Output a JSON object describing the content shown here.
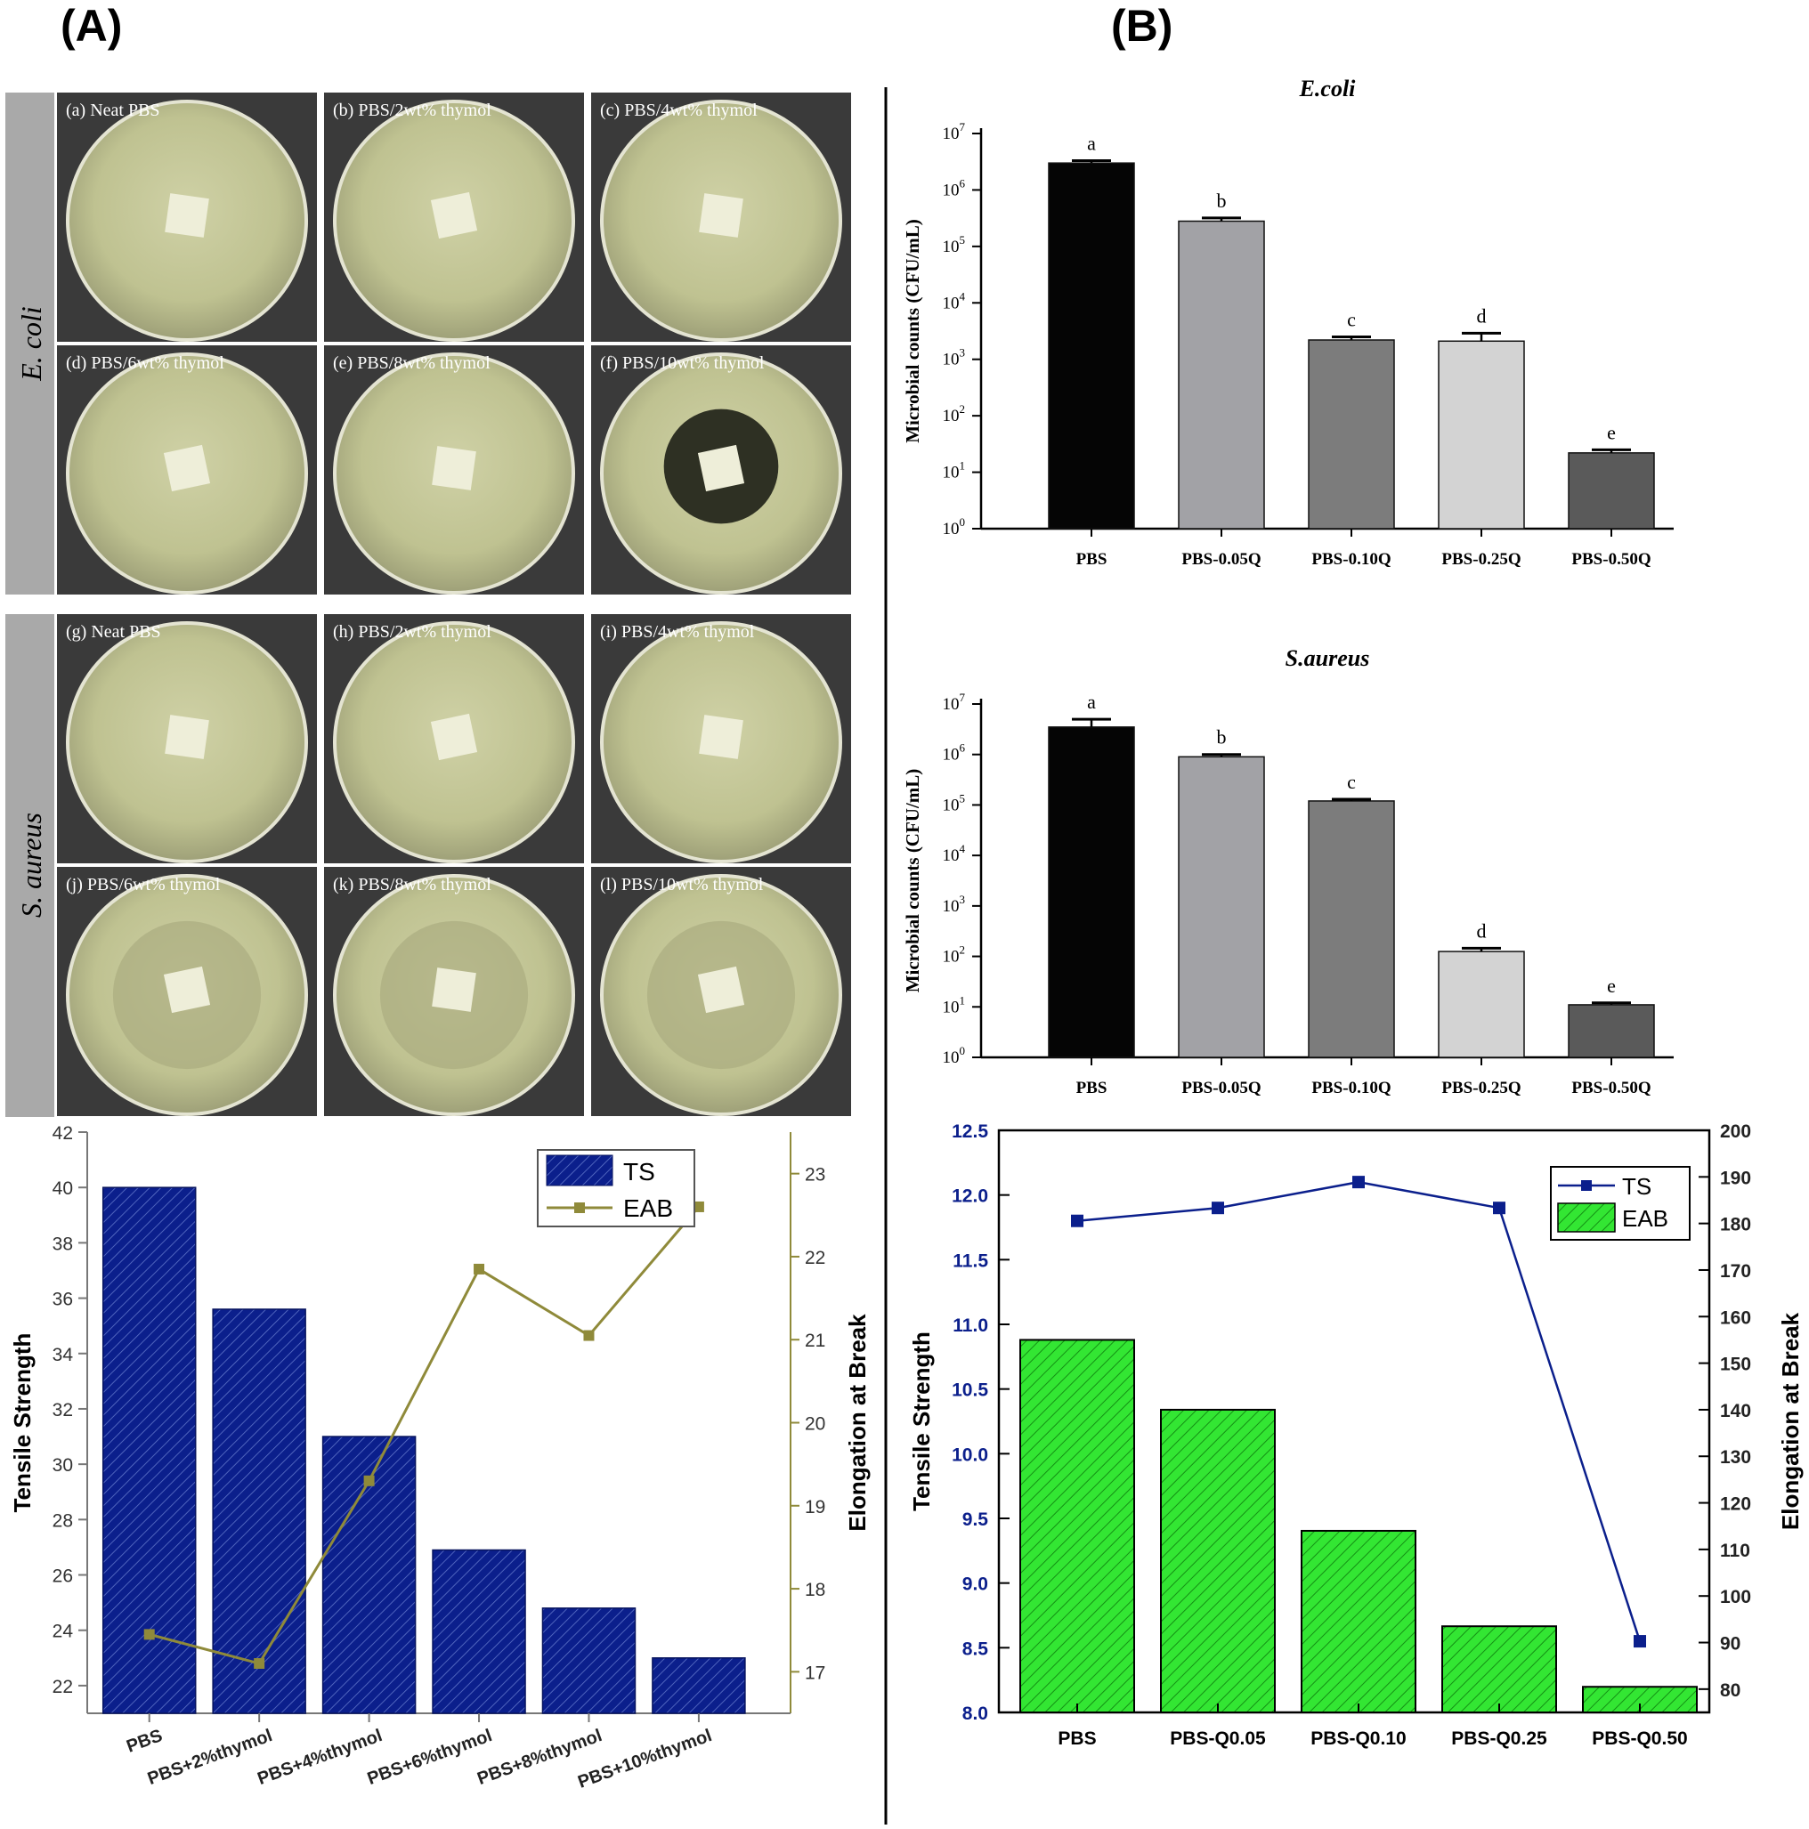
{
  "panels": {
    "a_label": "(A)",
    "b_label": "(B)"
  },
  "colors": {
    "ts_blue": "#0b1f8c",
    "eab_olive": "#8f8a3a",
    "eab_green": "#33e633",
    "plate_agar": "#c9cb9c",
    "plate_bg": "#3a3a3a",
    "side_label_bg": "#a9a9a9"
  },
  "plates": {
    "row_labels": [
      "E. coli",
      "S. aureus"
    ],
    "items": [
      {
        "label": "(a) Neat PBS",
        "zone": "none"
      },
      {
        "label": "(b) PBS/2wt% thymol",
        "zone": "none"
      },
      {
        "label": "(c) PBS/4wt% thymol",
        "zone": "none"
      },
      {
        "label": "(d) PBS/6wt% thymol",
        "zone": "none"
      },
      {
        "label": "(e) PBS/8wt% thymol",
        "zone": "none"
      },
      {
        "label": "(f) PBS/10wt% thymol",
        "zone": "dark"
      },
      {
        "label": "(g) Neat PBS",
        "zone": "none"
      },
      {
        "label": "(h) PBS/2wt% thymol",
        "zone": "none"
      },
      {
        "label": "(i) PBS/4wt% thymol",
        "zone": "none"
      },
      {
        "label": "(j) PBS/6wt% thymol",
        "zone": "light"
      },
      {
        "label": "(k) PBS/8wt% thymol",
        "zone": "light"
      },
      {
        "label": "(l) PBS/10wt% thymol",
        "zone": "light"
      }
    ]
  },
  "chart_data": [
    {
      "id": "A-mech",
      "type": "bar+line",
      "title": "",
      "categories": [
        "PBS",
        "PBS+2%thymol",
        "PBS+4%thymol",
        "PBS+6%thymol",
        "PBS+8%thymol",
        "PBS+10%thymol"
      ],
      "series": [
        {
          "name": "TS",
          "axis": "left",
          "kind": "bar",
          "values": [
            40.0,
            35.6,
            31.0,
            26.9,
            24.8,
            23.0
          ]
        },
        {
          "name": "EAB",
          "axis": "right",
          "kind": "line",
          "values": [
            17.45,
            17.1,
            19.3,
            21.85,
            21.05,
            22.6
          ]
        }
      ],
      "ylabel": "Tensile Strength",
      "y2label": "Elongation at Break",
      "ylim": [
        21,
        42
      ],
      "y2lim": [
        16.5,
        23.5
      ],
      "yticks": [
        "22",
        "24",
        "26",
        "28",
        "30",
        "32",
        "34",
        "36",
        "38",
        "40",
        "42"
      ],
      "y2ticks": [
        "17",
        "18",
        "19",
        "20",
        "21",
        "22",
        "23"
      ],
      "legend": "top-right"
    },
    {
      "id": "B-ecoli",
      "type": "bar",
      "title": "E.coli",
      "scale": "log",
      "categories": [
        "PBS",
        "PBS-0.05Q",
        "PBS-0.10Q",
        "PBS-0.25Q",
        "PBS-0.50Q"
      ],
      "values": [
        3000000,
        280000,
        2200,
        2100,
        22
      ],
      "error_upper": [
        3300000,
        320000,
        2500,
        2900,
        25
      ],
      "letters": [
        "a",
        "b",
        "c",
        "d",
        "e"
      ],
      "bar_colors": [
        "#050505",
        "#a2a2a6",
        "#7c7c7c",
        "#d3d3d3",
        "#5a5a5a"
      ],
      "ylabel": "Microbial counts (CFU/mL)",
      "ylim": [
        1,
        10000000
      ],
      "yticks_exp": [
        "0",
        "1",
        "2",
        "3",
        "4",
        "5",
        "6",
        "7"
      ]
    },
    {
      "id": "B-saureus",
      "type": "bar",
      "title": "S.aureus",
      "scale": "log",
      "categories": [
        "PBS",
        "PBS-0.05Q",
        "PBS-0.10Q",
        "PBS-0.25Q",
        "PBS-0.50Q"
      ],
      "values": [
        3500000,
        900000,
        120000,
        125,
        11
      ],
      "error_upper": [
        5000000,
        1000000,
        130000,
        145,
        12
      ],
      "letters": [
        "a",
        "b",
        "c",
        "d",
        "e"
      ],
      "bar_colors": [
        "#050505",
        "#a2a2a6",
        "#7c7c7c",
        "#d3d3d3",
        "#5a5a5a"
      ],
      "ylabel": "Microbial counts (CFU/mL)",
      "ylim": [
        1,
        10000000
      ],
      "yticks_exp": [
        "0",
        "1",
        "2",
        "3",
        "4",
        "5",
        "6",
        "7"
      ]
    },
    {
      "id": "B-mech",
      "type": "bar+line",
      "title": "",
      "categories": [
        "PBS",
        "PBS-Q0.05",
        "PBS-Q0.10",
        "PBS-Q0.25",
        "PBS-Q0.50"
      ],
      "series": [
        {
          "name": "TS",
          "axis": "left",
          "kind": "line",
          "values": [
            11.8,
            11.9,
            12.1,
            11.9,
            8.55
          ]
        },
        {
          "name": "EAB",
          "axis": "right",
          "kind": "bar",
          "values": [
            155,
            140,
            114,
            93.5,
            80.5
          ]
        }
      ],
      "ylabel": "Tensile Strength",
      "y2label": "Elongation at Break",
      "ylim": [
        8.0,
        12.5
      ],
      "y2lim": [
        75,
        200
      ],
      "yticks": [
        "8.0",
        "8.5",
        "9.0",
        "9.5",
        "10.0",
        "10.5",
        "11.0",
        "11.5",
        "12.0",
        "12.5"
      ],
      "y2ticks": [
        "80",
        "90",
        "100",
        "110",
        "120",
        "130",
        "140",
        "150",
        "160",
        "170",
        "180",
        "190",
        "200"
      ],
      "legend": "top-right"
    }
  ]
}
